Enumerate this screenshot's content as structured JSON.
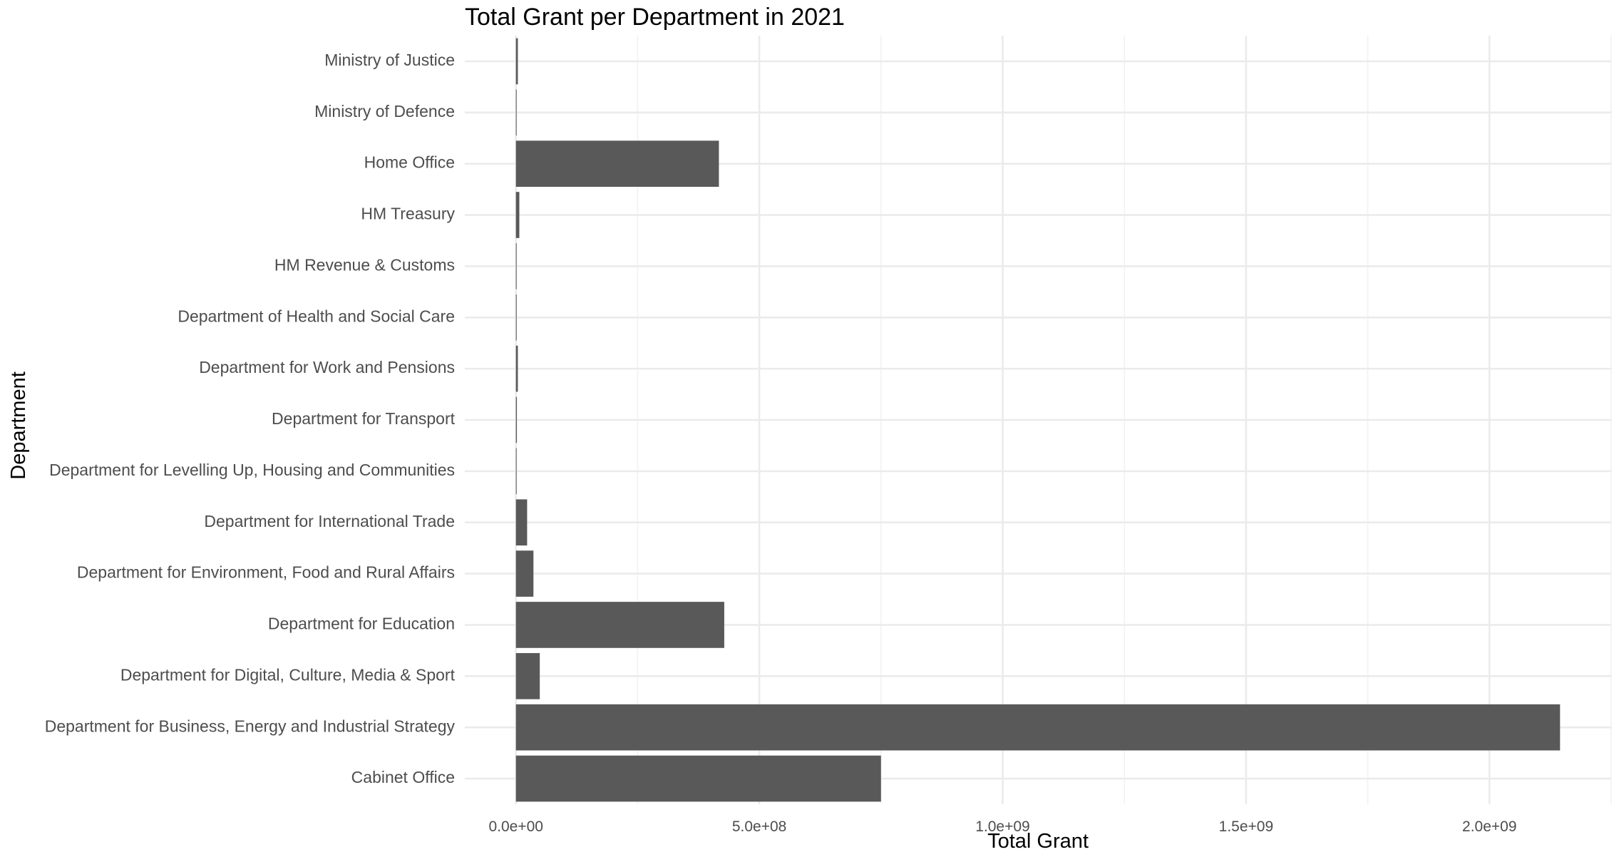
{
  "chart_data": {
    "type": "bar",
    "orientation": "horizontal",
    "title": "Total Grant per Department in 2021",
    "xlabel": "Total Grant",
    "ylabel": "Department",
    "xlim": [
      -105000000.0,
      2250000000.0
    ],
    "x_ticks": [
      0,
      500000000,
      1000000000,
      1500000000,
      2000000000
    ],
    "x_tick_labels": [
      "0.0e+00",
      "5.0e+08",
      "1.0e+09",
      "1.5e+09",
      "2.0e+09"
    ],
    "grid": true,
    "categories": [
      "Cabinet Office",
      "Department for Business, Energy and Industrial Strategy",
      "Department for Digital, Culture, Media & Sport",
      "Department for Education",
      "Department for Environment, Food and Rural Affairs",
      "Department for International Trade",
      "Department for Levelling Up, Housing and Communities",
      "Department for Transport",
      "Department for Work and Pensions",
      "Department of Health and Social Care",
      "HM Revenue & Customs",
      "HM Treasury",
      "Home Office",
      "Ministry of Defence",
      "Ministry of Justice"
    ],
    "values": [
      750000000,
      2145000000,
      49000000,
      428000000,
      36000000,
      23000000,
      1000000,
      2000000,
      4000000,
      1500000,
      500000,
      7000000,
      417000000,
      1000000,
      4000000
    ],
    "bar_color": "#595959",
    "background_color": "#ffffff",
    "grid_color": "#ebebeb"
  }
}
